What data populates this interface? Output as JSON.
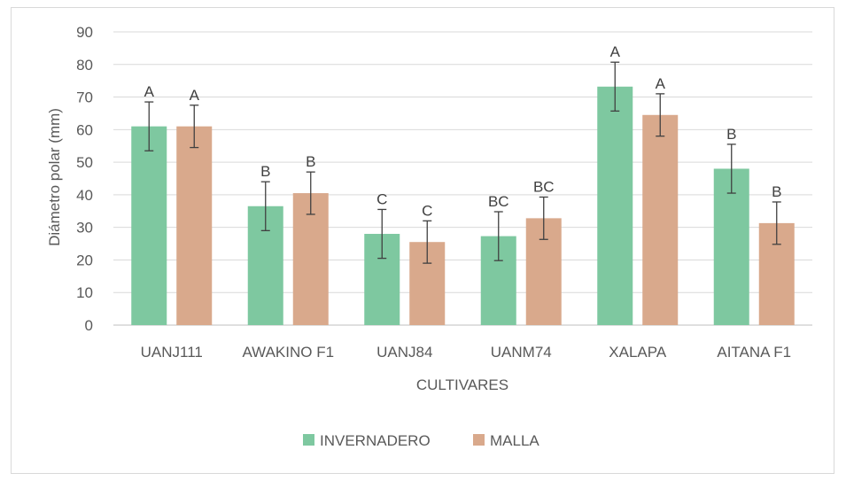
{
  "chart_data": {
    "type": "bar",
    "title": "",
    "xlabel": "CULTIVARES",
    "ylabel": "Diámetro polar (mm)",
    "ylim": [
      0,
      90
    ],
    "yticks": [
      0,
      10,
      20,
      30,
      40,
      50,
      60,
      70,
      80,
      90
    ],
    "grid": true,
    "legend_position": "bottom",
    "categories": [
      "UANJ111",
      "AWAKINO F1",
      "UANJ84",
      "UANM74",
      "XALAPA",
      "AITANA F1"
    ],
    "series": [
      {
        "name": "INVERNADERO",
        "color": "#7ec8a0",
        "values": [
          61,
          36.5,
          28,
          27.3,
          73.2,
          48
        ],
        "error": [
          7.5,
          7.5,
          7.5,
          7.5,
          7.5,
          7.5
        ],
        "labels": [
          "A",
          "B",
          "C",
          "BC",
          "A",
          "B"
        ]
      },
      {
        "name": "MALLA",
        "color": "#d9a98c",
        "values": [
          61,
          40.5,
          25.5,
          32.8,
          64.5,
          31.3
        ],
        "error": [
          6.5,
          6.5,
          6.5,
          6.5,
          6.5,
          6.5
        ],
        "labels": [
          "A",
          "B",
          "C",
          "BC",
          "A",
          "B"
        ]
      }
    ]
  }
}
